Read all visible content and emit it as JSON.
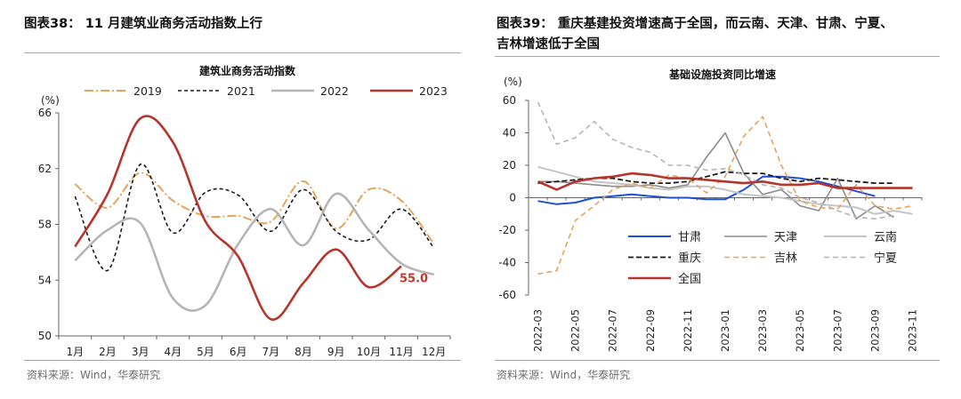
{
  "left": {
    "figure_title": "图表38： 11 月建筑业商务活动指数上行",
    "source": "资料来源：Wind，华泰研究",
    "chart_data": {
      "type": "line",
      "title": "建筑业商务活动指数",
      "ylabel": "(%)",
      "ylim": [
        50,
        66
      ],
      "yticks": [
        50,
        54,
        58,
        62,
        66
      ],
      "categories": [
        "1月",
        "2月",
        "3月",
        "4月",
        "5月",
        "6月",
        "7月",
        "8月",
        "9月",
        "10月",
        "11月",
        "12月"
      ],
      "series": [
        {
          "name": "2019",
          "color": "#e8a25a",
          "dash": "10,3,2,3",
          "width": 2,
          "values": [
            60.9,
            59.2,
            61.7,
            59.7,
            58.6,
            58.6,
            58.2,
            61.1,
            57.7,
            60.5,
            59.7,
            56.6
          ]
        },
        {
          "name": "2021",
          "color": "#1a1a1a",
          "dash": "4,3",
          "width": 1.6,
          "values": [
            60.0,
            54.7,
            62.3,
            57.4,
            60.3,
            60.1,
            57.5,
            60.5,
            57.5,
            56.9,
            59.1,
            56.3
          ]
        },
        {
          "name": "2022",
          "color": "#b5b5b5",
          "dash": "",
          "width": 2.6,
          "values": [
            55.4,
            57.6,
            58.1,
            52.7,
            52.2,
            56.6,
            59.1,
            56.5,
            60.2,
            57.6,
            55.2,
            54.4
          ]
        },
        {
          "name": "2023",
          "color": "#b5352c",
          "dash": "",
          "width": 2.6,
          "values": [
            56.4,
            60.2,
            65.6,
            63.9,
            58.2,
            55.7,
            51.2,
            53.8,
            56.2,
            53.5,
            55.0,
            null
          ]
        }
      ],
      "annotation": {
        "text": "55.0",
        "series": "2023",
        "category": "11月",
        "color": "#c0392b"
      }
    }
  },
  "right": {
    "figure_title_line1": "图表39： 重庆基建投资增速高于全国，而云南、天津、甘肃、宁夏、",
    "figure_title_line2": "吉林增速低于全国",
    "source": "资料来源：Wind，华泰研究",
    "chart_data": {
      "type": "line",
      "title": "基础设施投资同比增速",
      "ylabel": "(%)",
      "ylim": [
        -60,
        60
      ],
      "yticks": [
        -60,
        -40,
        -20,
        0,
        20,
        40,
        60
      ],
      "x": [
        "2022-03",
        "2022-04",
        "2022-05",
        "2022-06",
        "2022-07",
        "2022-08",
        "2022-09",
        "2022-10",
        "2022-11",
        "2022-12",
        "2023-01",
        "2023-02",
        "2023-03",
        "2023-04",
        "2023-05",
        "2023-06",
        "2023-07",
        "2023-08",
        "2023-09",
        "2023-10",
        "2023-11"
      ],
      "xtick_labels": [
        "2022-03",
        "2022-05",
        "2022-07",
        "2022-09",
        "2022-11",
        "2023-01",
        "2023-03",
        "2023-05",
        "2023-07",
        "2023-09",
        "2023-11"
      ],
      "series": [
        {
          "name": "甘肃",
          "color": "#1f4fd8",
          "dash": "",
          "width": 2,
          "values": [
            -2,
            -4,
            -3,
            0,
            1,
            2,
            1,
            0,
            0,
            -1,
            -1,
            5,
            13,
            13,
            12,
            10,
            7,
            4,
            1,
            null,
            null
          ]
        },
        {
          "name": "天津",
          "color": "#8c8c8c",
          "dash": "",
          "width": 1.6,
          "values": [
            10,
            10,
            9,
            8,
            7,
            7,
            8,
            6,
            8,
            25,
            40,
            15,
            2,
            5,
            -5,
            -8,
            12,
            -13,
            -5,
            -12,
            null
          ]
        },
        {
          "name": "云南",
          "color": "#c4c4c4",
          "dash": "",
          "width": 2,
          "values": [
            19,
            16,
            13,
            10,
            9,
            8,
            6,
            5,
            7,
            7,
            5,
            2,
            1,
            0,
            -2,
            -4,
            -5,
            -6,
            -10,
            -8,
            -10
          ]
        },
        {
          "name": "重庆",
          "color": "#1a1a1a",
          "dash": "6,3",
          "width": 1.8,
          "values": [
            9,
            10,
            11,
            12,
            12,
            10,
            9,
            9,
            10,
            13,
            16,
            15,
            15,
            12,
            10,
            12,
            11,
            10,
            9,
            9,
            null
          ]
        },
        {
          "name": "吉林",
          "color": "#e8a25a",
          "dash": "6,4",
          "width": 1.6,
          "values": [
            -47,
            -45,
            -14,
            -5,
            5,
            9,
            6,
            14,
            12,
            3,
            13,
            38,
            50,
            20,
            -2,
            -6,
            -7,
            8,
            -5,
            -7,
            -5
          ]
        },
        {
          "name": "宁夏",
          "color": "#b5b5b5",
          "dash": "6,4",
          "width": 1.6,
          "values": [
            59,
            33,
            37,
            47,
            36,
            31,
            28,
            20,
            20,
            17,
            18,
            14,
            8,
            6,
            0,
            -3,
            -8,
            -12,
            -13,
            -11,
            null
          ]
        },
        {
          "name": "全国",
          "color": "#b5352c",
          "dash": "",
          "width": 2.6,
          "values": [
            10,
            5,
            10,
            12,
            13,
            15,
            14,
            12,
            12,
            11,
            10,
            9,
            10,
            8,
            8,
            9,
            6,
            6,
            6,
            6,
            6
          ]
        }
      ]
    }
  }
}
